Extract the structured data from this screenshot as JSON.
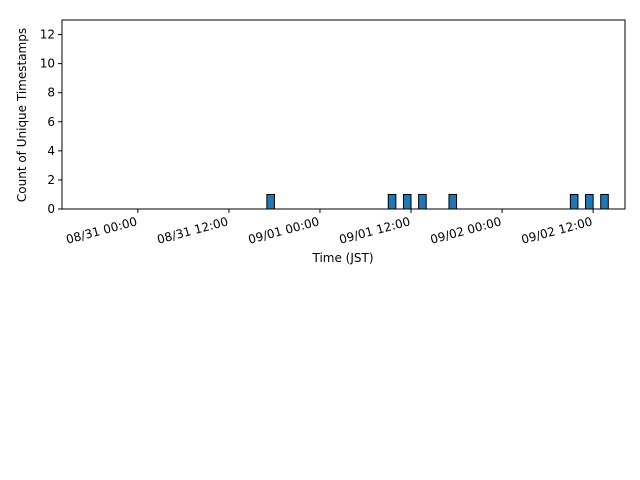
{
  "chart_data": {
    "type": "bar",
    "x_label": "Time (JST)",
    "y_label": "Count of Unique Timestamps",
    "x": [
      "08/31 17:00",
      "09/01 09:00",
      "09/01 11:00",
      "09/01 13:00",
      "09/01 17:00",
      "09/02 09:00",
      "09/02 11:00",
      "09/02 13:00"
    ],
    "values": [
      1,
      1,
      1,
      1,
      1,
      1,
      1,
      1
    ],
    "color": "#1f77b4",
    "xlim": [
      "08/30 14:00",
      "09/02 16:12"
    ],
    "xticks": [
      "08/31 00:00",
      "08/31 12:00",
      "09/01 00:00",
      "09/01 12:00",
      "09/02 00:00",
      "09/02 12:00"
    ],
    "ylim": [
      0,
      13
    ],
    "yticks": [
      0,
      2,
      4,
      6,
      8,
      10,
      12
    ],
    "grid": false
  }
}
